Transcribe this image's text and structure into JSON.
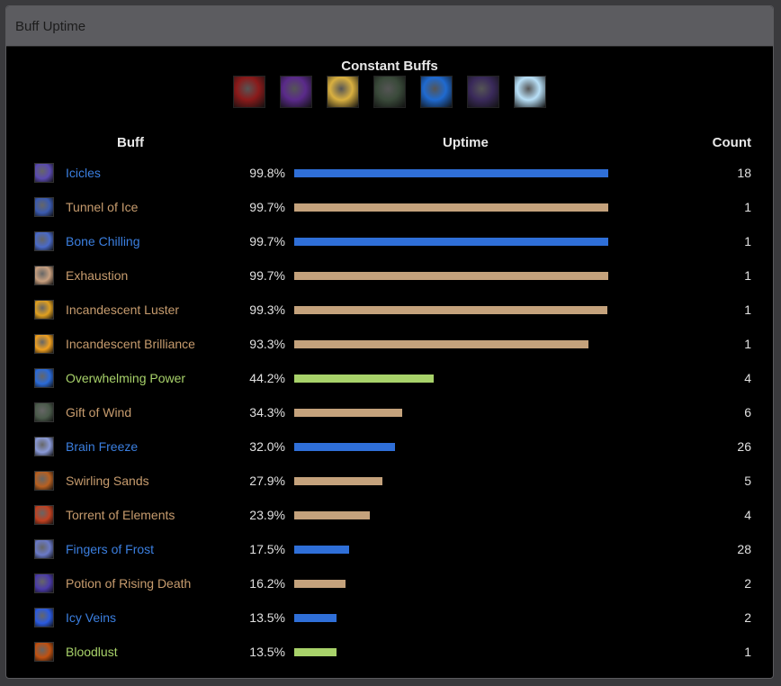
{
  "panel": {
    "title": "Buff Uptime"
  },
  "constant_buffs": {
    "title": "Constant Buffs",
    "icons": [
      {
        "name": "hand-icon",
        "color": "#8a1a1a"
      },
      {
        "name": "arcane-familiar-icon",
        "color": "#5a2a8a"
      },
      {
        "name": "cheese-icon",
        "color": "#d9b040"
      },
      {
        "name": "obelisk-icon",
        "color": "#3a4a3a"
      },
      {
        "name": "blue-eye-icon",
        "color": "#1f6ad0"
      },
      {
        "name": "shadow-figure-icon",
        "color": "#3a2a5a"
      },
      {
        "name": "crystal-icon",
        "color": "#b8e0f8"
      }
    ]
  },
  "table": {
    "headers": {
      "buff": "Buff",
      "uptime": "Uptime",
      "count": "Count"
    },
    "rows": [
      {
        "name": "Icicles",
        "uptime": "99.8%",
        "value": 99.8,
        "count": "18",
        "kind": "blue",
        "icon": "icicles-icon",
        "icon_color": "#5a4ab0"
      },
      {
        "name": "Tunnel of Ice",
        "uptime": "99.7%",
        "value": 99.7,
        "count": "1",
        "kind": "tan",
        "icon": "ice-shard-icon",
        "icon_color": "#3a5ab0"
      },
      {
        "name": "Bone Chilling",
        "uptime": "99.7%",
        "value": 99.7,
        "count": "1",
        "kind": "blue",
        "icon": "skull-icon",
        "icon_color": "#4a6ac8"
      },
      {
        "name": "Exhaustion",
        "uptime": "99.7%",
        "value": 99.7,
        "count": "1",
        "kind": "tan",
        "icon": "exhaustion-icon",
        "icon_color": "#c8a080"
      },
      {
        "name": "Incandescent Luster",
        "uptime": "99.3%",
        "value": 99.3,
        "count": "1",
        "kind": "tan",
        "icon": "luster-icon",
        "icon_color": "#e0a020"
      },
      {
        "name": "Incandescent Brilliance",
        "uptime": "93.3%",
        "value": 93.3,
        "count": "1",
        "kind": "tan",
        "icon": "brilliance-icon",
        "icon_color": "#f0a020"
      },
      {
        "name": "Overwhelming Power",
        "uptime": "44.2%",
        "value": 44.2,
        "count": "4",
        "kind": "green",
        "icon": "lightning-icon",
        "icon_color": "#2a6ad8"
      },
      {
        "name": "Gift of Wind",
        "uptime": "34.3%",
        "value": 34.3,
        "count": "6",
        "kind": "tan",
        "icon": "wind-swirl-icon",
        "icon_color": "#4a5a4a"
      },
      {
        "name": "Brain Freeze",
        "uptime": "32.0%",
        "value": 32.0,
        "count": "26",
        "kind": "blue",
        "icon": "brain-freeze-icon",
        "icon_color": "#8a9ad8"
      },
      {
        "name": "Swirling Sands",
        "uptime": "27.9%",
        "value": 27.9,
        "count": "5",
        "kind": "tan",
        "icon": "sands-icon",
        "icon_color": "#b86020"
      },
      {
        "name": "Torrent of Elements",
        "uptime": "23.9%",
        "value": 23.9,
        "count": "4",
        "kind": "tan",
        "icon": "elements-icon",
        "icon_color": "#c04020"
      },
      {
        "name": "Fingers of Frost",
        "uptime": "17.5%",
        "value": 17.5,
        "count": "28",
        "kind": "blue",
        "icon": "frost-fingers-icon",
        "icon_color": "#6a7ac8"
      },
      {
        "name": "Potion of Rising Death",
        "uptime": "16.2%",
        "value": 16.2,
        "count": "2",
        "kind": "tan",
        "icon": "potion-icon",
        "icon_color": "#4a3aa8"
      },
      {
        "name": "Icy Veins",
        "uptime": "13.5%",
        "value": 13.5,
        "count": "2",
        "kind": "blue",
        "icon": "icy-veins-icon",
        "icon_color": "#2a5ae0"
      },
      {
        "name": "Bloodlust",
        "uptime": "13.5%",
        "value": 13.5,
        "count": "1",
        "kind": "green",
        "icon": "bloodlust-icon",
        "icon_color": "#c05010"
      }
    ]
  },
  "colors": {
    "blue": "#2f6fd8",
    "tan": "#c4a27c",
    "green": "#a8d26a"
  }
}
